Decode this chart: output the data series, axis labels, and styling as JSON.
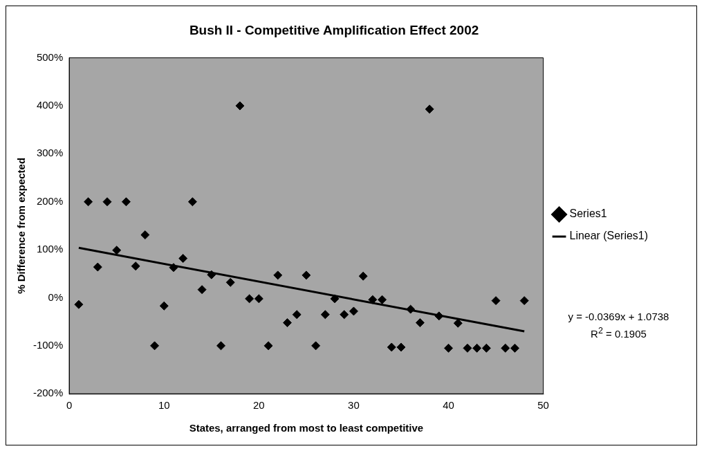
{
  "chart_data": {
    "type": "scatter",
    "title": "Bush II - Competitive Amplification Effect 2002",
    "xlabel": "States, arranged from most to least competitive",
    "ylabel": "% Difference from expected",
    "x": [
      1,
      2,
      3,
      4,
      5,
      6,
      7,
      8,
      9,
      10,
      11,
      12,
      13,
      14,
      15,
      16,
      17,
      18,
      19,
      20,
      21,
      22,
      23,
      24,
      25,
      26,
      27,
      28,
      29,
      30,
      31,
      32,
      33,
      34,
      35,
      36,
      37,
      38,
      39,
      40,
      41,
      42,
      43,
      44,
      45,
      46,
      47,
      48
    ],
    "series": [
      {
        "name": "Series1",
        "color": "#000000",
        "marker": "diamond",
        "values": [
          -14,
          200,
          64,
          200,
          99,
          200,
          66,
          131,
          -100,
          -17,
          63,
          82,
          200,
          17,
          48,
          -100,
          32,
          400,
          -2,
          -2,
          -100,
          47,
          -52,
          -35,
          47,
          -100,
          -35,
          -2,
          -35,
          -28,
          45,
          -4,
          -4,
          -103,
          -103,
          -24,
          -52,
          393,
          -38,
          -105,
          -53,
          -105,
          -105,
          -105,
          -6,
          -105,
          -105,
          -6
        ]
      },
      {
        "name": "Linear (Series1)",
        "type": "line",
        "color": "#000000",
        "marker": "none",
        "line_style": "solid",
        "x": [
          1,
          48
        ],
        "values": [
          104,
          -70
        ]
      }
    ],
    "xlim": [
      0,
      50
    ],
    "xticks": [
      0,
      10,
      20,
      30,
      40,
      50
    ],
    "ylim": [
      -200,
      500
    ],
    "yticks": [
      {
        "value": -200,
        "label": "-200%"
      },
      {
        "value": -100,
        "label": "-100%"
      },
      {
        "value": 0,
        "label": "0%"
      },
      {
        "value": 100,
        "label": "100%"
      },
      {
        "value": 200,
        "label": "200%"
      },
      {
        "value": 300,
        "label": "300%"
      },
      {
        "value": 400,
        "label": "400%"
      },
      {
        "value": 500,
        "label": "500%"
      }
    ],
    "grid": false,
    "legend": "right",
    "annotations": [
      "y = -0.0369x + 1.0738",
      "R$^{2}$ = 0.1905"
    ]
  }
}
